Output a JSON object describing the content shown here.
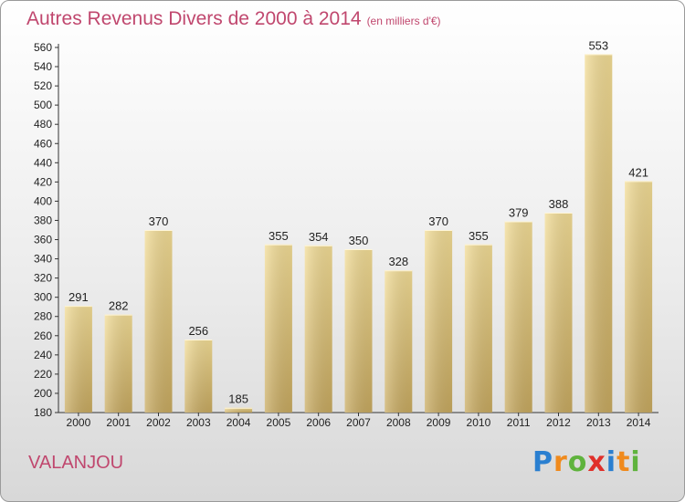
{
  "header": {
    "title": "Autres Revenus Divers de 2000 à 2014",
    "unit": "(en milliers d'€)"
  },
  "footer": {
    "commune": "VALANJOU",
    "logo_letters": [
      "P",
      "r",
      "o",
      "x",
      "i",
      "t",
      "i"
    ],
    "logo_colors": [
      "#2a7fd0",
      "#f08a1c",
      "#5fb33d",
      "#e0302a",
      "#2a7fd0",
      "#f08a1c",
      "#5fb33d"
    ]
  },
  "chart_data": {
    "type": "bar",
    "title": "Autres Revenus Divers de 2000 à 2014",
    "subtitle": "(en milliers d'€)",
    "categories": [
      "2000",
      "2001",
      "2002",
      "2003",
      "2004",
      "2005",
      "2006",
      "2007",
      "2008",
      "2009",
      "2010",
      "2011",
      "2012",
      "2013",
      "2014"
    ],
    "values": [
      291,
      282,
      370,
      256,
      185,
      355,
      354,
      350,
      328,
      370,
      355,
      379,
      388,
      553,
      421
    ],
    "ylim": [
      180,
      560
    ],
    "ytick_step": 20,
    "grid": false,
    "bar_color": "#e6cf86"
  }
}
